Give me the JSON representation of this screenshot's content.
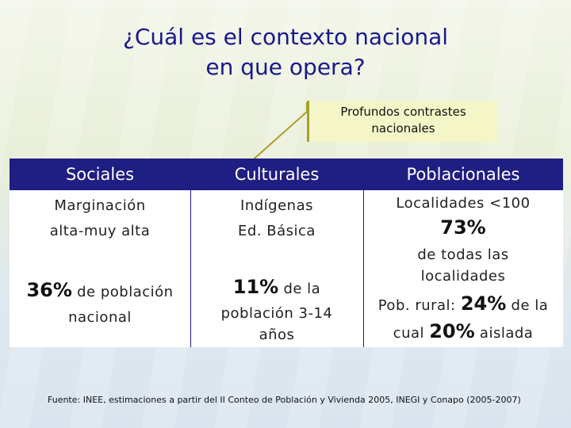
{
  "title": {
    "line1": "¿Cuál es el contexto nacional",
    "line2": "en que opera?"
  },
  "callout": {
    "line1": "Profundos contrastes",
    "line2": "nacionales"
  },
  "table": {
    "headers": [
      "Sociales",
      "Culturales",
      "Poblacionales"
    ],
    "sociales": {
      "line1": "Marginación",
      "line2": "alta-muy alta",
      "pct": "36%",
      "pct_suffix": " de población",
      "line4": "nacional"
    },
    "culturales": {
      "line1": "Indígenas",
      "line2": "Ed. Básica",
      "pct": "11%",
      "pct_suffix": " de la",
      "line4": "población 3-14",
      "line5": "años"
    },
    "poblacionales": {
      "line1": "Localidades <100",
      "pct1": "73%",
      "line3": "de todas las",
      "line4": "localidades",
      "rural_prefix": "Pob. rural: ",
      "pct2": "24%",
      "rural_suffix": " de la",
      "cual_prefix": "cual ",
      "pct3": "20%",
      "cual_suffix": " aislada"
    }
  },
  "source": "Fuente: INEE, estimaciones a partir del II Conteo de Población y Vivienda 2005, INEGI y Conapo (2005-2007)"
}
